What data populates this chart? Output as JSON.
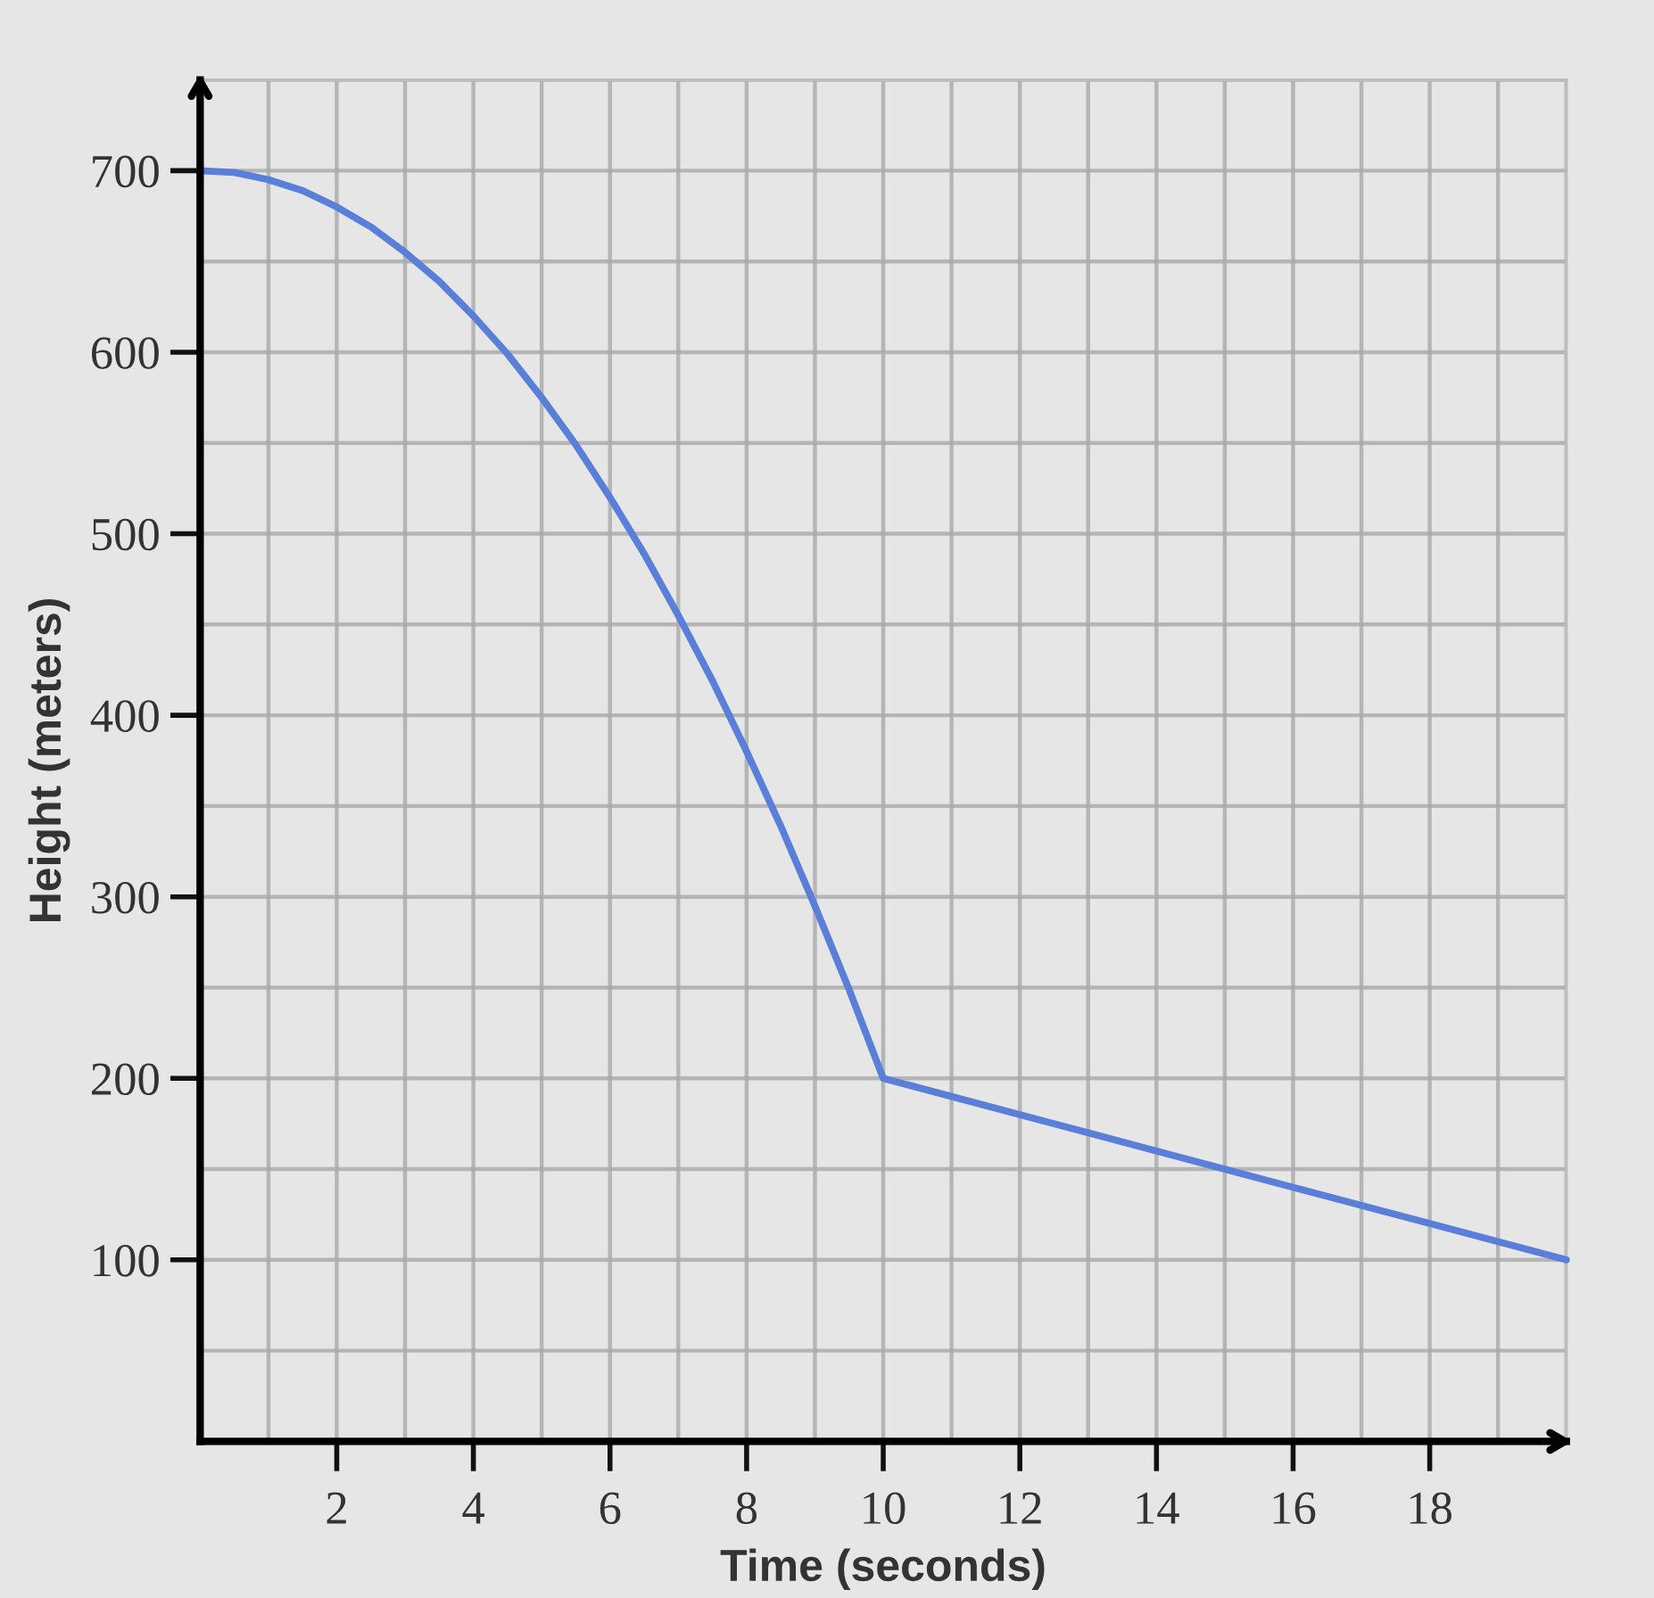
{
  "chart_data": {
    "type": "line",
    "xlabel": "Time (seconds)",
    "ylabel": "Height (meters)",
    "x": [
      0,
      0.5,
      1,
      1.5,
      2,
      2.5,
      3,
      3.5,
      4,
      4.5,
      5,
      5.5,
      6,
      6.5,
      7,
      7.5,
      8,
      8.5,
      9,
      9.5,
      10,
      12,
      14,
      16,
      18,
      20
    ],
    "series": [
      {
        "color": "#5a7fd8",
        "values": [
          700,
          699,
          695,
          689,
          680,
          669,
          655,
          639,
          620,
          599,
          575,
          549,
          520,
          489,
          455,
          419,
          380,
          339,
          295,
          249,
          200,
          180,
          160,
          140,
          120,
          100
        ]
      }
    ],
    "xlim": [
      0,
      20
    ],
    "ylim": [
      0,
      750
    ],
    "xticks": [
      {
        "value": 1,
        "label": null
      },
      2,
      {
        "value": 3,
        "label": null
      },
      4,
      {
        "value": 5,
        "label": null
      },
      6,
      {
        "value": 7,
        "label": null
      },
      8,
      {
        "value": 9,
        "label": null
      },
      10,
      {
        "value": 11,
        "label": null
      },
      12,
      {
        "value": 13,
        "label": null
      },
      14,
      {
        "value": 15,
        "label": null
      },
      16,
      {
        "value": 17,
        "label": null
      },
      18,
      {
        "value": 19,
        "label": null
      },
      {
        "value": 20,
        "label": null
      }
    ],
    "yticks": [
      {
        "value": 50,
        "label": null
      },
      100,
      {
        "value": 150,
        "label": null
      },
      200,
      {
        "value": 250,
        "label": null
      },
      300,
      {
        "value": 350,
        "label": null
      },
      400,
      {
        "value": 450,
        "label": null
      },
      500,
      {
        "value": 550,
        "label": null
      },
      600,
      {
        "value": 650,
        "label": null
      },
      700,
      {
        "value": 750,
        "label": null
      }
    ],
    "grid": true,
    "marker": "none",
    "line_style": "solid"
  }
}
